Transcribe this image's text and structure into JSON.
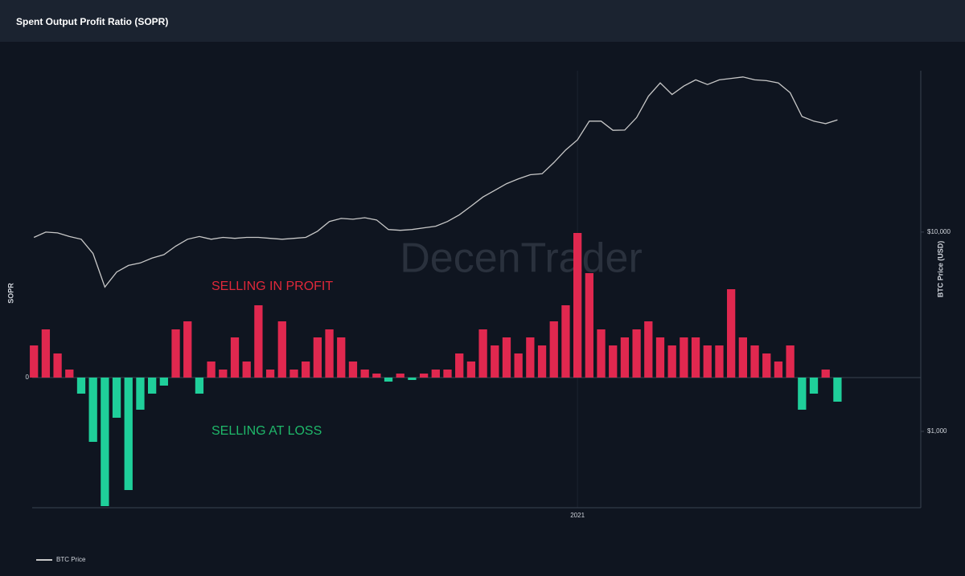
{
  "chart_data": {
    "type": "bar",
    "title": "Spent Output Profit Ratio (SOPR)",
    "y_label": "SOPR",
    "y2_label": "BTC Price (USD)",
    "annotations": [
      "SELLING IN PROFIT",
      "SELLING AT LOSS"
    ],
    "watermark": "DecenTrader",
    "positive_color": "#e0284f",
    "negative_color": "#1fcf9a",
    "x": [
      2020.08,
      2020.1,
      2020.12,
      2020.14,
      2020.16,
      2020.18,
      2020.2,
      2020.22,
      2020.24,
      2020.26,
      2020.28,
      2020.3,
      2020.32,
      2020.34,
      2020.36,
      2020.38,
      2020.4,
      2020.42,
      2020.44,
      2020.46,
      2020.48,
      2020.5,
      2020.52,
      2020.54,
      2020.56,
      2020.58,
      2020.6,
      2020.62,
      2020.64,
      2020.66,
      2020.68,
      2020.7,
      2020.72,
      2020.74,
      2020.76,
      2020.78,
      2020.8,
      2020.82,
      2020.84,
      2020.86,
      2020.88,
      2020.9,
      2020.92,
      2020.94,
      2020.96,
      2020.98,
      2021.0,
      2021.02,
      2021.04,
      2021.06,
      2021.08,
      2021.1,
      2021.12,
      2021.14,
      2021.16,
      2021.18,
      2021.2,
      2021.22,
      2021.24,
      2021.26,
      2021.28,
      2021.3,
      2021.32,
      2021.34,
      2021.36,
      2021.38,
      2021.4,
      2021.42,
      2021.44
    ],
    "values": [
      0.04,
      0.06,
      0.03,
      0.01,
      -0.02,
      -0.08,
      -0.16,
      -0.05,
      -0.14,
      -0.04,
      -0.02,
      -0.01,
      0.06,
      0.07,
      -0.02,
      0.02,
      0.01,
      0.05,
      0.02,
      0.09,
      0.01,
      0.07,
      0.01,
      0.02,
      0.05,
      0.06,
      0.05,
      0.02,
      0.01,
      0.005,
      -0.005,
      0.005,
      -0.003,
      0.005,
      0.01,
      0.01,
      0.03,
      0.02,
      0.06,
      0.04,
      0.05,
      0.03,
      0.05,
      0.04,
      0.07,
      0.09,
      0.18,
      0.13,
      0.06,
      0.04,
      0.05,
      0.06,
      0.07,
      0.05,
      0.04,
      0.05,
      0.05,
      0.04,
      0.04,
      0.11,
      0.05,
      0.04,
      0.03,
      0.02,
      0.04,
      -0.04,
      -0.02,
      0.01,
      -0.03
    ],
    "series": [
      {
        "name": "BTC Price",
        "color": "#c8c8c8",
        "axis": "y2",
        "values": [
          9400,
          10000,
          9900,
          9500,
          9200,
          7800,
          5300,
          6300,
          6800,
          7000,
          7400,
          7700,
          8500,
          9200,
          9500,
          9200,
          9400,
          9300,
          9400,
          9400,
          9300,
          9200,
          9300,
          9400,
          10100,
          11300,
          11700,
          11600,
          11800,
          11500,
          10300,
          10200,
          10300,
          10500,
          10700,
          11300,
          12200,
          13500,
          15000,
          16200,
          17500,
          18500,
          19400,
          19600,
          22300,
          25800,
          29000,
          36000,
          36000,
          32400,
          32500,
          37500,
          48000,
          56000,
          49000,
          54000,
          58000,
          55000,
          58000,
          59000,
          60000,
          58000,
          57500,
          56000,
          50000,
          38000,
          36000,
          35000,
          36500
        ]
      }
    ],
    "xlim": [
      2020.077,
      2021.581
    ],
    "xticks": [
      {
        "value": 2021,
        "label": "2021"
      }
    ],
    "ylim": [
      -0.162,
      0.382
    ],
    "yticks": [
      0
    ],
    "y2lim": [
      414,
      64500
    ],
    "y2_log": true,
    "y2ticks": [
      {
        "value": 1000,
        "label": "$1,000"
      },
      {
        "value": 10000,
        "label": "$10,000"
      }
    ]
  }
}
